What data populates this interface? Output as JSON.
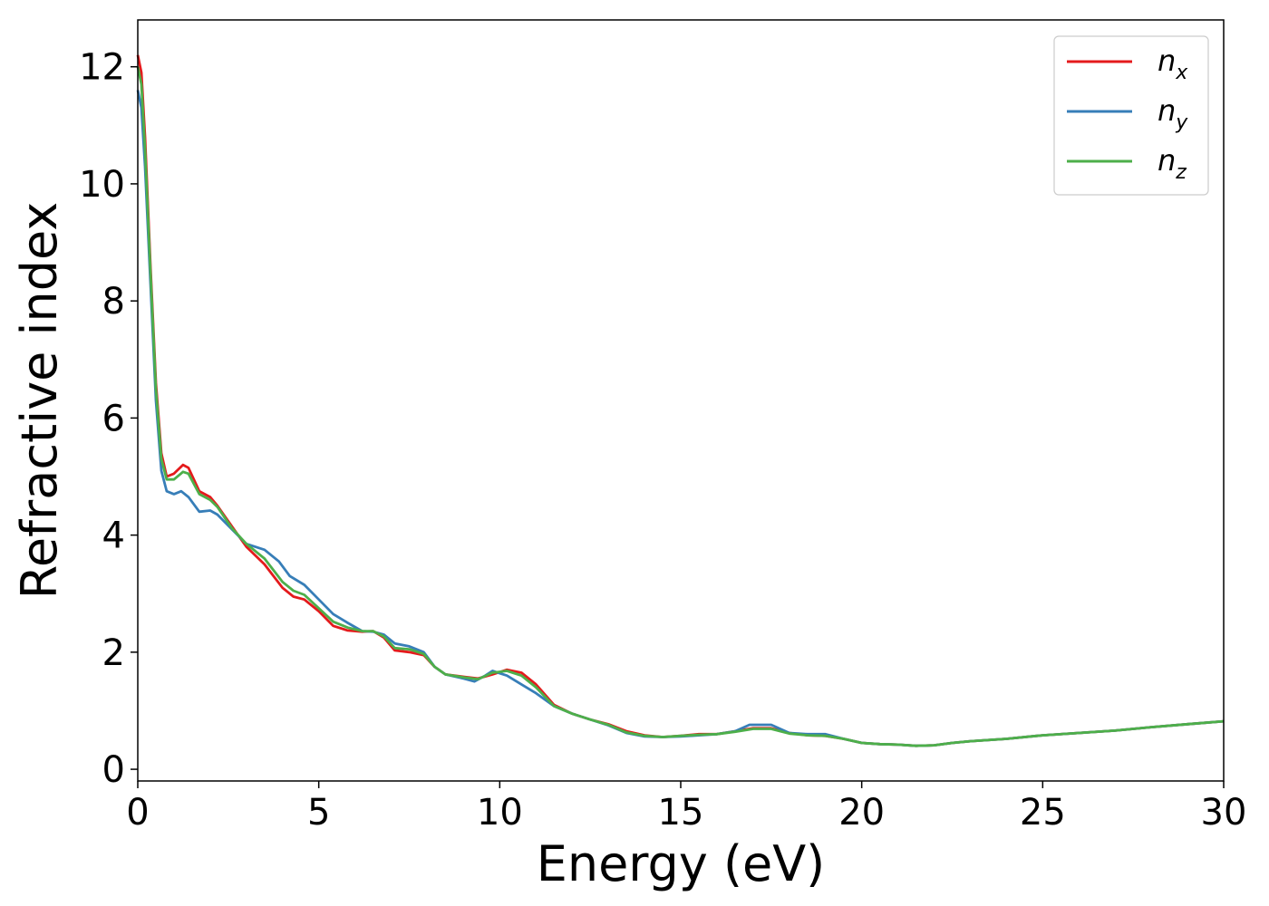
{
  "chart_data": {
    "type": "line",
    "xlabel": "Energy (eV)",
    "ylabel": "Refractive index",
    "xlim": [
      0,
      30
    ],
    "ylim": [
      -0.2,
      12.8
    ],
    "x_ticks": [
      0,
      5,
      10,
      15,
      20,
      25,
      30
    ],
    "y_ticks": [
      0,
      2,
      4,
      6,
      8,
      10,
      12
    ],
    "grid": false,
    "legend_position": "top-right",
    "series": [
      {
        "name": "n",
        "subscript": "x",
        "color": "#e41a1c",
        "points": [
          [
            0,
            12.2
          ],
          [
            0.1,
            11.9
          ],
          [
            0.2,
            10.8
          ],
          [
            0.35,
            8.6
          ],
          [
            0.5,
            6.6
          ],
          [
            0.65,
            5.4
          ],
          [
            0.8,
            5.0
          ],
          [
            1.0,
            5.05
          ],
          [
            1.25,
            5.2
          ],
          [
            1.4,
            5.15
          ],
          [
            1.7,
            4.75
          ],
          [
            2.0,
            4.65
          ],
          [
            2.2,
            4.5
          ],
          [
            2.6,
            4.15
          ],
          [
            3.0,
            3.8
          ],
          [
            3.5,
            3.5
          ],
          [
            4.0,
            3.1
          ],
          [
            4.3,
            2.95
          ],
          [
            4.6,
            2.9
          ],
          [
            5.0,
            2.7
          ],
          [
            5.4,
            2.45
          ],
          [
            5.8,
            2.37
          ],
          [
            6.2,
            2.35
          ],
          [
            6.5,
            2.36
          ],
          [
            6.8,
            2.25
          ],
          [
            7.1,
            2.03
          ],
          [
            7.5,
            2.0
          ],
          [
            7.9,
            1.95
          ],
          [
            8.2,
            1.75
          ],
          [
            8.5,
            1.62
          ],
          [
            9.0,
            1.58
          ],
          [
            9.4,
            1.55
          ],
          [
            9.8,
            1.62
          ],
          [
            10.2,
            1.7
          ],
          [
            10.6,
            1.65
          ],
          [
            11.0,
            1.45
          ],
          [
            11.5,
            1.1
          ],
          [
            12.0,
            0.95
          ],
          [
            12.5,
            0.85
          ],
          [
            13.0,
            0.77
          ],
          [
            13.5,
            0.65
          ],
          [
            14.0,
            0.58
          ],
          [
            14.5,
            0.55
          ],
          [
            15.0,
            0.57
          ],
          [
            15.5,
            0.6
          ],
          [
            16.0,
            0.6
          ],
          [
            16.5,
            0.65
          ],
          [
            17.0,
            0.7
          ],
          [
            17.5,
            0.7
          ],
          [
            18.0,
            0.62
          ],
          [
            18.5,
            0.58
          ],
          [
            19.0,
            0.57
          ],
          [
            19.5,
            0.52
          ],
          [
            20.0,
            0.45
          ],
          [
            20.5,
            0.43
          ],
          [
            21.0,
            0.42
          ],
          [
            21.5,
            0.4
          ],
          [
            22.0,
            0.41
          ],
          [
            22.5,
            0.45
          ],
          [
            23.0,
            0.48
          ],
          [
            24.0,
            0.52
          ],
          [
            25.0,
            0.58
          ],
          [
            26.0,
            0.62
          ],
          [
            27.0,
            0.66
          ],
          [
            28.0,
            0.72
          ],
          [
            29.0,
            0.77
          ],
          [
            30.0,
            0.82
          ]
        ]
      },
      {
        "name": "n",
        "subscript": "y",
        "color": "#377eb8",
        "points": [
          [
            0,
            11.6
          ],
          [
            0.1,
            11.3
          ],
          [
            0.2,
            10.3
          ],
          [
            0.35,
            8.3
          ],
          [
            0.5,
            6.3
          ],
          [
            0.65,
            5.1
          ],
          [
            0.8,
            4.75
          ],
          [
            1.0,
            4.7
          ],
          [
            1.2,
            4.75
          ],
          [
            1.4,
            4.65
          ],
          [
            1.7,
            4.4
          ],
          [
            2.0,
            4.42
          ],
          [
            2.2,
            4.35
          ],
          [
            2.6,
            4.1
          ],
          [
            3.0,
            3.85
          ],
          [
            3.5,
            3.75
          ],
          [
            3.9,
            3.55
          ],
          [
            4.2,
            3.3
          ],
          [
            4.6,
            3.15
          ],
          [
            5.0,
            2.9
          ],
          [
            5.4,
            2.65
          ],
          [
            5.8,
            2.5
          ],
          [
            6.2,
            2.36
          ],
          [
            6.5,
            2.35
          ],
          [
            6.8,
            2.3
          ],
          [
            7.1,
            2.15
          ],
          [
            7.5,
            2.1
          ],
          [
            7.9,
            2.0
          ],
          [
            8.2,
            1.75
          ],
          [
            8.5,
            1.62
          ],
          [
            9.0,
            1.55
          ],
          [
            9.3,
            1.5
          ],
          [
            9.6,
            1.6
          ],
          [
            9.8,
            1.68
          ],
          [
            10.2,
            1.6
          ],
          [
            10.6,
            1.45
          ],
          [
            11.0,
            1.3
          ],
          [
            11.5,
            1.08
          ],
          [
            12.0,
            0.95
          ],
          [
            12.5,
            0.85
          ],
          [
            13.0,
            0.75
          ],
          [
            13.5,
            0.62
          ],
          [
            14.0,
            0.56
          ],
          [
            14.5,
            0.55
          ],
          [
            15.0,
            0.56
          ],
          [
            15.5,
            0.58
          ],
          [
            16.0,
            0.6
          ],
          [
            16.5,
            0.65
          ],
          [
            16.9,
            0.76
          ],
          [
            17.5,
            0.76
          ],
          [
            18.0,
            0.62
          ],
          [
            18.5,
            0.6
          ],
          [
            19.0,
            0.6
          ],
          [
            19.5,
            0.52
          ],
          [
            20.0,
            0.45
          ],
          [
            20.5,
            0.43
          ],
          [
            21.0,
            0.42
          ],
          [
            21.5,
            0.4
          ],
          [
            22.0,
            0.41
          ],
          [
            22.5,
            0.45
          ],
          [
            23.0,
            0.48
          ],
          [
            24.0,
            0.52
          ],
          [
            25.0,
            0.58
          ],
          [
            26.0,
            0.62
          ],
          [
            27.0,
            0.66
          ],
          [
            28.0,
            0.72
          ],
          [
            29.0,
            0.77
          ],
          [
            30.0,
            0.82
          ]
        ]
      },
      {
        "name": "n",
        "subscript": "z",
        "color": "#4daf4a",
        "points": [
          [
            0,
            12.0
          ],
          [
            0.1,
            11.7
          ],
          [
            0.2,
            10.6
          ],
          [
            0.35,
            8.5
          ],
          [
            0.5,
            6.5
          ],
          [
            0.65,
            5.3
          ],
          [
            0.8,
            4.95
          ],
          [
            1.0,
            4.95
          ],
          [
            1.25,
            5.08
          ],
          [
            1.4,
            5.05
          ],
          [
            1.7,
            4.7
          ],
          [
            2.0,
            4.6
          ],
          [
            2.2,
            4.48
          ],
          [
            2.6,
            4.12
          ],
          [
            3.0,
            3.85
          ],
          [
            3.5,
            3.6
          ],
          [
            4.0,
            3.2
          ],
          [
            4.3,
            3.05
          ],
          [
            4.6,
            2.98
          ],
          [
            5.0,
            2.75
          ],
          [
            5.4,
            2.52
          ],
          [
            5.8,
            2.42
          ],
          [
            6.2,
            2.36
          ],
          [
            6.5,
            2.36
          ],
          [
            6.8,
            2.27
          ],
          [
            7.1,
            2.07
          ],
          [
            7.5,
            2.05
          ],
          [
            7.9,
            1.97
          ],
          [
            8.2,
            1.75
          ],
          [
            8.5,
            1.62
          ],
          [
            9.0,
            1.57
          ],
          [
            9.4,
            1.54
          ],
          [
            9.8,
            1.65
          ],
          [
            10.2,
            1.68
          ],
          [
            10.6,
            1.6
          ],
          [
            11.0,
            1.4
          ],
          [
            11.5,
            1.08
          ],
          [
            12.0,
            0.95
          ],
          [
            12.5,
            0.85
          ],
          [
            13.0,
            0.76
          ],
          [
            13.5,
            0.63
          ],
          [
            14.0,
            0.57
          ],
          [
            14.5,
            0.55
          ],
          [
            15.0,
            0.57
          ],
          [
            15.5,
            0.59
          ],
          [
            16.0,
            0.6
          ],
          [
            16.5,
            0.64
          ],
          [
            17.0,
            0.69
          ],
          [
            17.5,
            0.69
          ],
          [
            18.0,
            0.61
          ],
          [
            18.5,
            0.58
          ],
          [
            19.0,
            0.57
          ],
          [
            19.5,
            0.52
          ],
          [
            20.0,
            0.45
          ],
          [
            20.5,
            0.43
          ],
          [
            21.0,
            0.42
          ],
          [
            21.5,
            0.4
          ],
          [
            22.0,
            0.41
          ],
          [
            22.5,
            0.45
          ],
          [
            23.0,
            0.48
          ],
          [
            24.0,
            0.52
          ],
          [
            25.0,
            0.58
          ],
          [
            26.0,
            0.62
          ],
          [
            27.0,
            0.66
          ],
          [
            28.0,
            0.72
          ],
          [
            29.0,
            0.77
          ],
          [
            30.0,
            0.82
          ]
        ]
      }
    ]
  }
}
